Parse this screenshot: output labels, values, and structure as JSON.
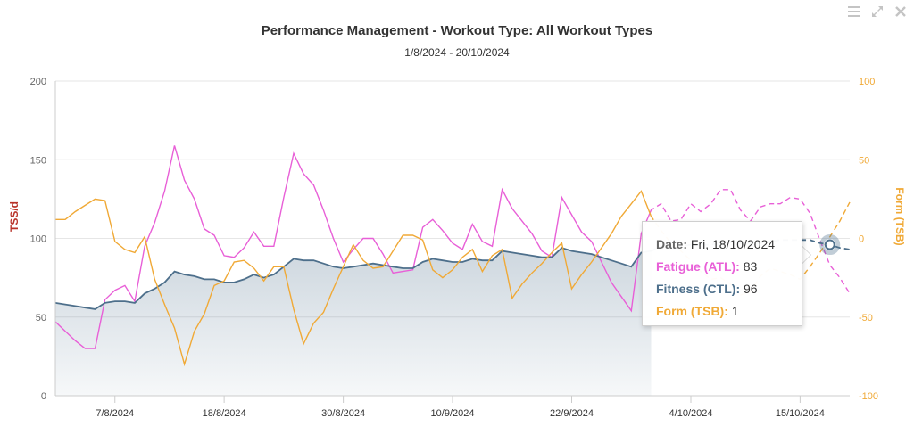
{
  "header": {
    "title": "Performance Management - Workout Type: All Workout Types",
    "subtitle": "1/8/2024 - 20/10/2024"
  },
  "toolbar": {
    "menu_icon": "hamburger-menu-icon",
    "expand_icon": "expand-arrows-icon",
    "close_icon": "close-icon"
  },
  "tooltip": {
    "date_label": "Date:",
    "date_value": "Fri, 18/10/2024",
    "fatigue_label": "Fatigue (ATL):",
    "fatigue_value": "83",
    "fitness_label": "Fitness (CTL):",
    "fitness_value": "96",
    "form_label": "Form (TSB):",
    "form_value": "1"
  },
  "colors": {
    "fatigue": "#e85fd7",
    "fitness": "#4d6f8b",
    "form": "#f0a936",
    "left_axis_title": "#b83228",
    "right_axis_title": "#f0a936"
  },
  "chart_data": {
    "type": "line",
    "yleft": {
      "label": "TSS/d",
      "range": [
        0,
        200
      ],
      "ticks": [
        "0",
        "50",
        "100",
        "150",
        "200"
      ]
    },
    "yright": {
      "label": "Form (TSB)",
      "range": [
        -100,
        100
      ],
      "ticks": [
        "-100",
        "-50",
        "0",
        "50",
        "100"
      ]
    },
    "x_range": [
      "2024-08-01",
      "2024-10-20"
    ],
    "x_ticks": [
      "7/8/2024",
      "18/8/2024",
      "30/8/2024",
      "10/9/2024",
      "22/9/2024",
      "4/10/2024",
      "15/10/2024"
    ],
    "x_tick_dates": [
      "2024-08-07",
      "2024-08-18",
      "2024-08-30",
      "2024-09-10",
      "2024-09-22",
      "2024-10-04",
      "2024-10-15"
    ],
    "grid": true,
    "legend": "none",
    "actual_end_date": "2024-09-30",
    "highlight_date": "2024-10-18",
    "series": [
      {
        "name": "Fatigue (ATL)",
        "axis": "left",
        "values": [
          [
            "2024-08-01",
            47
          ],
          [
            "2024-08-02",
            41
          ],
          [
            "2024-08-03",
            35
          ],
          [
            "2024-08-04",
            30
          ],
          [
            "2024-08-05",
            30
          ],
          [
            "2024-08-06",
            61
          ],
          [
            "2024-08-07",
            67
          ],
          [
            "2024-08-08",
            70
          ],
          [
            "2024-08-09",
            60
          ],
          [
            "2024-08-10",
            95
          ],
          [
            "2024-08-11",
            110
          ],
          [
            "2024-08-12",
            130
          ],
          [
            "2024-08-13",
            159
          ],
          [
            "2024-08-14",
            137
          ],
          [
            "2024-08-15",
            125
          ],
          [
            "2024-08-16",
            106
          ],
          [
            "2024-08-17",
            102
          ],
          [
            "2024-08-18",
            89
          ],
          [
            "2024-08-19",
            88
          ],
          [
            "2024-08-20",
            94
          ],
          [
            "2024-08-21",
            104
          ],
          [
            "2024-08-22",
            95
          ],
          [
            "2024-08-23",
            95
          ],
          [
            "2024-08-24",
            126
          ],
          [
            "2024-08-25",
            154
          ],
          [
            "2024-08-26",
            141
          ],
          [
            "2024-08-27",
            134
          ],
          [
            "2024-08-28",
            118
          ],
          [
            "2024-08-29",
            100
          ],
          [
            "2024-08-30",
            85
          ],
          [
            "2024-08-31",
            93
          ],
          [
            "2024-09-01",
            100
          ],
          [
            "2024-09-02",
            100
          ],
          [
            "2024-09-03",
            90
          ],
          [
            "2024-09-04",
            78
          ],
          [
            "2024-09-05",
            79
          ],
          [
            "2024-09-06",
            80
          ],
          [
            "2024-09-07",
            107
          ],
          [
            "2024-09-08",
            112
          ],
          [
            "2024-09-09",
            105
          ],
          [
            "2024-09-10",
            97
          ],
          [
            "2024-09-11",
            93
          ],
          [
            "2024-09-12",
            109
          ],
          [
            "2024-09-13",
            98
          ],
          [
            "2024-09-14",
            95
          ],
          [
            "2024-09-15",
            131
          ],
          [
            "2024-09-16",
            119
          ],
          [
            "2024-09-17",
            111
          ],
          [
            "2024-09-18",
            103
          ],
          [
            "2024-09-19",
            92
          ],
          [
            "2024-09-20",
            88
          ],
          [
            "2024-09-21",
            126
          ],
          [
            "2024-09-22",
            115
          ],
          [
            "2024-09-23",
            104
          ],
          [
            "2024-09-24",
            98
          ],
          [
            "2024-09-25",
            85
          ],
          [
            "2024-09-26",
            72
          ],
          [
            "2024-09-27",
            63
          ],
          [
            "2024-09-28",
            54
          ],
          [
            "2024-09-29",
            103
          ],
          [
            "2024-09-30",
            118
          ],
          [
            "2024-10-01",
            122
          ],
          [
            "2024-10-02",
            111
          ],
          [
            "2024-10-03",
            112
          ],
          [
            "2024-10-04",
            122
          ],
          [
            "2024-10-05",
            117
          ],
          [
            "2024-10-06",
            122
          ],
          [
            "2024-10-07",
            131
          ],
          [
            "2024-10-08",
            131
          ],
          [
            "2024-10-09",
            118
          ],
          [
            "2024-10-10",
            111
          ],
          [
            "2024-10-11",
            120
          ],
          [
            "2024-10-12",
            122
          ],
          [
            "2024-10-13",
            122
          ],
          [
            "2024-10-14",
            126
          ],
          [
            "2024-10-15",
            125
          ],
          [
            "2024-10-16",
            116
          ],
          [
            "2024-10-17",
            99
          ],
          [
            "2024-10-18",
            83
          ],
          [
            "2024-10-19",
            75
          ],
          [
            "2024-10-20",
            65
          ]
        ]
      },
      {
        "name": "Fitness (CTL)",
        "axis": "left",
        "values": [
          [
            "2024-08-01",
            59
          ],
          [
            "2024-08-02",
            58
          ],
          [
            "2024-08-03",
            57
          ],
          [
            "2024-08-04",
            56
          ],
          [
            "2024-08-05",
            55
          ],
          [
            "2024-08-06",
            59
          ],
          [
            "2024-08-07",
            60
          ],
          [
            "2024-08-08",
            60
          ],
          [
            "2024-08-09",
            59
          ],
          [
            "2024-08-10",
            65
          ],
          [
            "2024-08-11",
            68
          ],
          [
            "2024-08-12",
            72
          ],
          [
            "2024-08-13",
            79
          ],
          [
            "2024-08-14",
            77
          ],
          [
            "2024-08-15",
            76
          ],
          [
            "2024-08-16",
            74
          ],
          [
            "2024-08-17",
            74
          ],
          [
            "2024-08-18",
            72
          ],
          [
            "2024-08-19",
            72
          ],
          [
            "2024-08-20",
            74
          ],
          [
            "2024-08-21",
            77
          ],
          [
            "2024-08-22",
            75
          ],
          [
            "2024-08-23",
            77
          ],
          [
            "2024-08-24",
            82
          ],
          [
            "2024-08-25",
            87
          ],
          [
            "2024-08-26",
            86
          ],
          [
            "2024-08-27",
            86
          ],
          [
            "2024-08-28",
            84
          ],
          [
            "2024-08-29",
            82
          ],
          [
            "2024-08-30",
            81
          ],
          [
            "2024-08-31",
            82
          ],
          [
            "2024-09-01",
            83
          ],
          [
            "2024-09-02",
            84
          ],
          [
            "2024-09-03",
            83
          ],
          [
            "2024-09-04",
            82
          ],
          [
            "2024-09-05",
            81
          ],
          [
            "2024-09-06",
            81
          ],
          [
            "2024-09-07",
            85
          ],
          [
            "2024-09-08",
            87
          ],
          [
            "2024-09-09",
            86
          ],
          [
            "2024-09-10",
            85
          ],
          [
            "2024-09-11",
            85
          ],
          [
            "2024-09-12",
            87
          ],
          [
            "2024-09-13",
            86
          ],
          [
            "2024-09-14",
            86
          ],
          [
            "2024-09-15",
            92
          ],
          [
            "2024-09-16",
            91
          ],
          [
            "2024-09-17",
            90
          ],
          [
            "2024-09-18",
            89
          ],
          [
            "2024-09-19",
            88
          ],
          [
            "2024-09-20",
            88
          ],
          [
            "2024-09-21",
            94
          ],
          [
            "2024-09-22",
            92
          ],
          [
            "2024-09-23",
            91
          ],
          [
            "2024-09-24",
            90
          ],
          [
            "2024-09-25",
            88
          ],
          [
            "2024-09-26",
            86
          ],
          [
            "2024-09-27",
            84
          ],
          [
            "2024-09-28",
            82
          ],
          [
            "2024-09-29",
            91
          ],
          [
            "2024-09-30",
            92
          ],
          [
            "2024-10-01",
            95
          ],
          [
            "2024-10-02",
            95
          ],
          [
            "2024-10-03",
            95
          ],
          [
            "2024-10-04",
            96
          ],
          [
            "2024-10-05",
            96
          ],
          [
            "2024-10-06",
            96
          ],
          [
            "2024-10-07",
            97
          ],
          [
            "2024-10-08",
            98
          ],
          [
            "2024-10-09",
            97
          ],
          [
            "2024-10-10",
            97
          ],
          [
            "2024-10-11",
            97
          ],
          [
            "2024-10-12",
            98
          ],
          [
            "2024-10-13",
            99
          ],
          [
            "2024-10-14",
            99
          ],
          [
            "2024-10-15",
            99
          ],
          [
            "2024-10-16",
            99
          ],
          [
            "2024-10-17",
            97
          ],
          [
            "2024-10-18",
            96
          ],
          [
            "2024-10-19",
            94
          ],
          [
            "2024-10-20",
            93
          ]
        ]
      },
      {
        "name": "Form (TSB)",
        "axis": "right",
        "values": [
          [
            "2024-08-01",
            12
          ],
          [
            "2024-08-02",
            12
          ],
          [
            "2024-08-03",
            17
          ],
          [
            "2024-08-04",
            21
          ],
          [
            "2024-08-05",
            25
          ],
          [
            "2024-08-06",
            24
          ],
          [
            "2024-08-07",
            -2
          ],
          [
            "2024-08-08",
            -7
          ],
          [
            "2024-08-09",
            -9
          ],
          [
            "2024-08-10",
            1
          ],
          [
            "2024-08-11",
            -26
          ],
          [
            "2024-08-12",
            -42
          ],
          [
            "2024-08-13",
            -57
          ],
          [
            "2024-08-14",
            -80
          ],
          [
            "2024-08-15",
            -59
          ],
          [
            "2024-08-16",
            -48
          ],
          [
            "2024-08-17",
            -30
          ],
          [
            "2024-08-18",
            -27
          ],
          [
            "2024-08-19",
            -15
          ],
          [
            "2024-08-20",
            -14
          ],
          [
            "2024-08-21",
            -19
          ],
          [
            "2024-08-22",
            -27
          ],
          [
            "2024-08-23",
            -18
          ],
          [
            "2024-08-24",
            -18
          ],
          [
            "2024-08-25",
            -45
          ],
          [
            "2024-08-26",
            -67
          ],
          [
            "2024-08-27",
            -54
          ],
          [
            "2024-08-28",
            -47
          ],
          [
            "2024-08-29",
            -32
          ],
          [
            "2024-08-30",
            -18
          ],
          [
            "2024-08-31",
            -4
          ],
          [
            "2024-09-01",
            -14
          ],
          [
            "2024-09-02",
            -19
          ],
          [
            "2024-09-03",
            -18
          ],
          [
            "2024-09-04",
            -8
          ],
          [
            "2024-09-05",
            2
          ],
          [
            "2024-09-06",
            2
          ],
          [
            "2024-09-07",
            -1
          ],
          [
            "2024-09-08",
            -20
          ],
          [
            "2024-09-09",
            -25
          ],
          [
            "2024-09-10",
            -20
          ],
          [
            "2024-09-11",
            -12
          ],
          [
            "2024-09-12",
            -7
          ],
          [
            "2024-09-13",
            -21
          ],
          [
            "2024-09-14",
            -11
          ],
          [
            "2024-09-15",
            -7
          ],
          [
            "2024-09-16",
            -38
          ],
          [
            "2024-09-17",
            -29
          ],
          [
            "2024-09-18",
            -22
          ],
          [
            "2024-09-19",
            -16
          ],
          [
            "2024-09-20",
            -9
          ],
          [
            "2024-09-21",
            -3
          ],
          [
            "2024-09-22",
            -32
          ],
          [
            "2024-09-23",
            -23
          ],
          [
            "2024-09-24",
            -15
          ],
          [
            "2024-09-25",
            -6
          ],
          [
            "2024-09-26",
            3
          ],
          [
            "2024-09-27",
            14
          ],
          [
            "2024-09-28",
            22
          ],
          [
            "2024-09-29",
            30
          ],
          [
            "2024-09-30",
            14
          ],
          [
            "2024-10-01",
            5
          ],
          [
            "2024-10-02",
            -3
          ],
          [
            "2024-10-03",
            -8
          ],
          [
            "2024-10-04",
            -14
          ],
          [
            "2024-10-05",
            -21
          ],
          [
            "2024-10-06",
            -26
          ],
          [
            "2024-10-07",
            -25
          ],
          [
            "2024-10-08",
            -29
          ],
          [
            "2024-10-09",
            -36
          ],
          [
            "2024-10-10",
            -34
          ],
          [
            "2024-10-11",
            -24
          ],
          [
            "2024-10-12",
            -19
          ],
          [
            "2024-10-13",
            -21
          ],
          [
            "2024-10-14",
            -23
          ],
          [
            "2024-10-15",
            -26
          ],
          [
            "2024-10-16",
            -18
          ],
          [
            "2024-10-17",
            -9
          ],
          [
            "2024-10-18",
            1
          ],
          [
            "2024-10-19",
            11
          ],
          [
            "2024-10-20",
            23
          ]
        ]
      }
    ]
  }
}
